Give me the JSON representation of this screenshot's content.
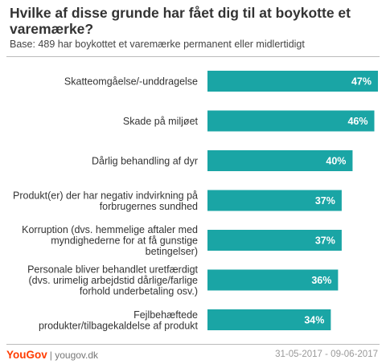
{
  "header": {
    "title": "Hvilke af disse grunde har fået dig til at boykotte et varemærke?",
    "subtitle": "Base: 489 har boykottet et varemærke permanent eller midlertidigt"
  },
  "footer": {
    "logo": "YouGov",
    "site": "| yougov.dk",
    "dates": "31-05-2017 - 09-06-2017"
  },
  "colors": {
    "bar": "#1aa5a5",
    "label_text": "#ffffff"
  },
  "chart_data": {
    "type": "bar",
    "orientation": "horizontal",
    "title": "Hvilke af disse grunde har fået dig til at boykotte et varemærke?",
    "subtitle": "Base: 489 har boykottet et varemærke permanent eller midlertidigt",
    "unit": "%",
    "xlim": [
      0,
      47
    ],
    "grid": false,
    "categories": [
      [
        "Skatteomgåelse/-unddragelse"
      ],
      [
        "Skade på miljøet"
      ],
      [
        "Dårlig behandling af dyr"
      ],
      [
        "Produkt(er) der har negativ indvirkning på",
        "forbrugernes sundhed"
      ],
      [
        "Korruption (dvs. hemmelige aftaler med",
        "myndighederne for at få gunstige",
        "betingelser)"
      ],
      [
        "Personale bliver behandlet uretfærdigt",
        "(dvs. urimelig arbejdstid dårlige/farlige",
        "forhold underbetaling osv.)"
      ],
      [
        "Fejlbehæftede",
        "produkter/tilbagekaldelse af produkt"
      ]
    ],
    "values": [
      47,
      46,
      40,
      37,
      37,
      36,
      34
    ],
    "data_labels": [
      "47%",
      "46%",
      "40%",
      "37%",
      "37%",
      "36%",
      "34%"
    ]
  }
}
